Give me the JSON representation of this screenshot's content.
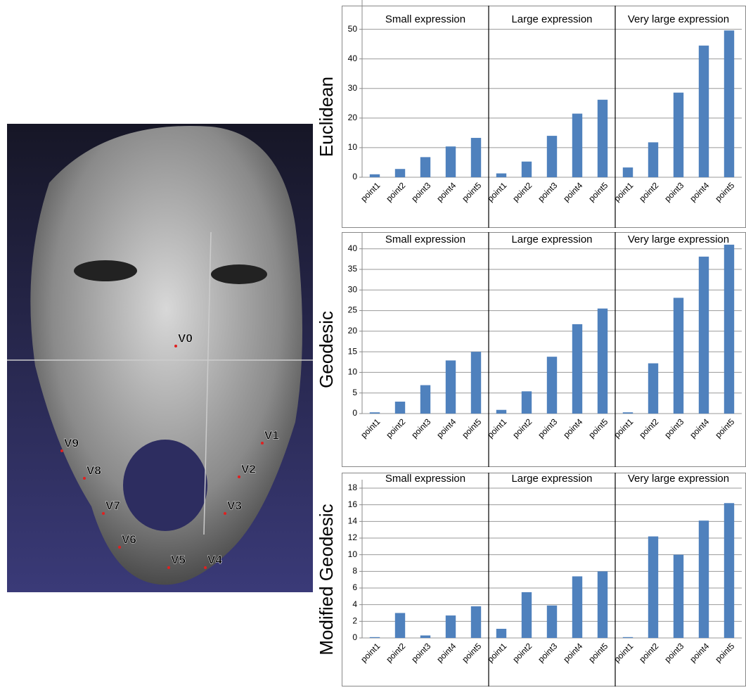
{
  "face_labels": [
    "V0",
    "V1",
    "V2",
    "V3",
    "V4",
    "V5",
    "V6",
    "V7",
    "V8",
    "V9"
  ],
  "chart_data": [
    {
      "type": "bar",
      "y_label": "Euclidean",
      "groups": [
        "Small expression",
        "Large expression",
        "Very large expression"
      ],
      "categories": [
        "point1",
        "point2",
        "point3",
        "point4",
        "point5",
        "point1",
        "point2",
        "point3",
        "point4",
        "point5",
        "point1",
        "point2",
        "point3",
        "point4",
        "point5"
      ],
      "values": [
        1.0,
        2.8,
        6.8,
        10.4,
        13.3,
        1.3,
        5.3,
        14.0,
        21.5,
        26.2,
        3.3,
        11.8,
        28.6,
        44.5,
        49.6
      ],
      "color": "#4f81bd",
      "ylim": [
        0,
        58
      ],
      "yticks": [
        0,
        10,
        20,
        30,
        40,
        50
      ],
      "grid": true
    },
    {
      "type": "bar",
      "y_label": "Geodesic",
      "groups": [
        "Small expression",
        "Large expression",
        "Very large expression"
      ],
      "categories": [
        "point1",
        "point2",
        "point3",
        "point4",
        "point5",
        "point1",
        "point2",
        "point3",
        "point4",
        "point5",
        "point1",
        "point2",
        "point3",
        "point4",
        "point5"
      ],
      "values": [
        0.3,
        2.9,
        6.9,
        12.9,
        15.0,
        0.9,
        5.4,
        13.8,
        21.7,
        25.5,
        0.3,
        12.2,
        28.1,
        38.1,
        41.0
      ],
      "color": "#4f81bd",
      "ylim": [
        0,
        42
      ],
      "yticks": [
        0,
        5,
        10,
        15,
        20,
        25,
        30,
        35,
        40
      ],
      "grid": true
    },
    {
      "type": "bar",
      "y_label": "Modified Geodesic",
      "groups": [
        "Small expression",
        "Large expression",
        "Very large expression"
      ],
      "categories": [
        "point1",
        "point2",
        "point3",
        "point4",
        "point5",
        "point1",
        "point2",
        "point3",
        "point4",
        "point5",
        "point1",
        "point2",
        "point3",
        "point4",
        "point5"
      ],
      "values": [
        0.1,
        3.0,
        0.3,
        2.7,
        3.8,
        1.1,
        5.5,
        3.9,
        7.4,
        8.0,
        0.1,
        12.2,
        10.0,
        14.1,
        16.2
      ],
      "color": "#4f81bd",
      "ylim": [
        0,
        18
      ],
      "yticks": [
        0,
        2,
        4,
        6,
        8,
        10,
        12,
        14,
        16,
        18
      ],
      "grid": true
    }
  ]
}
